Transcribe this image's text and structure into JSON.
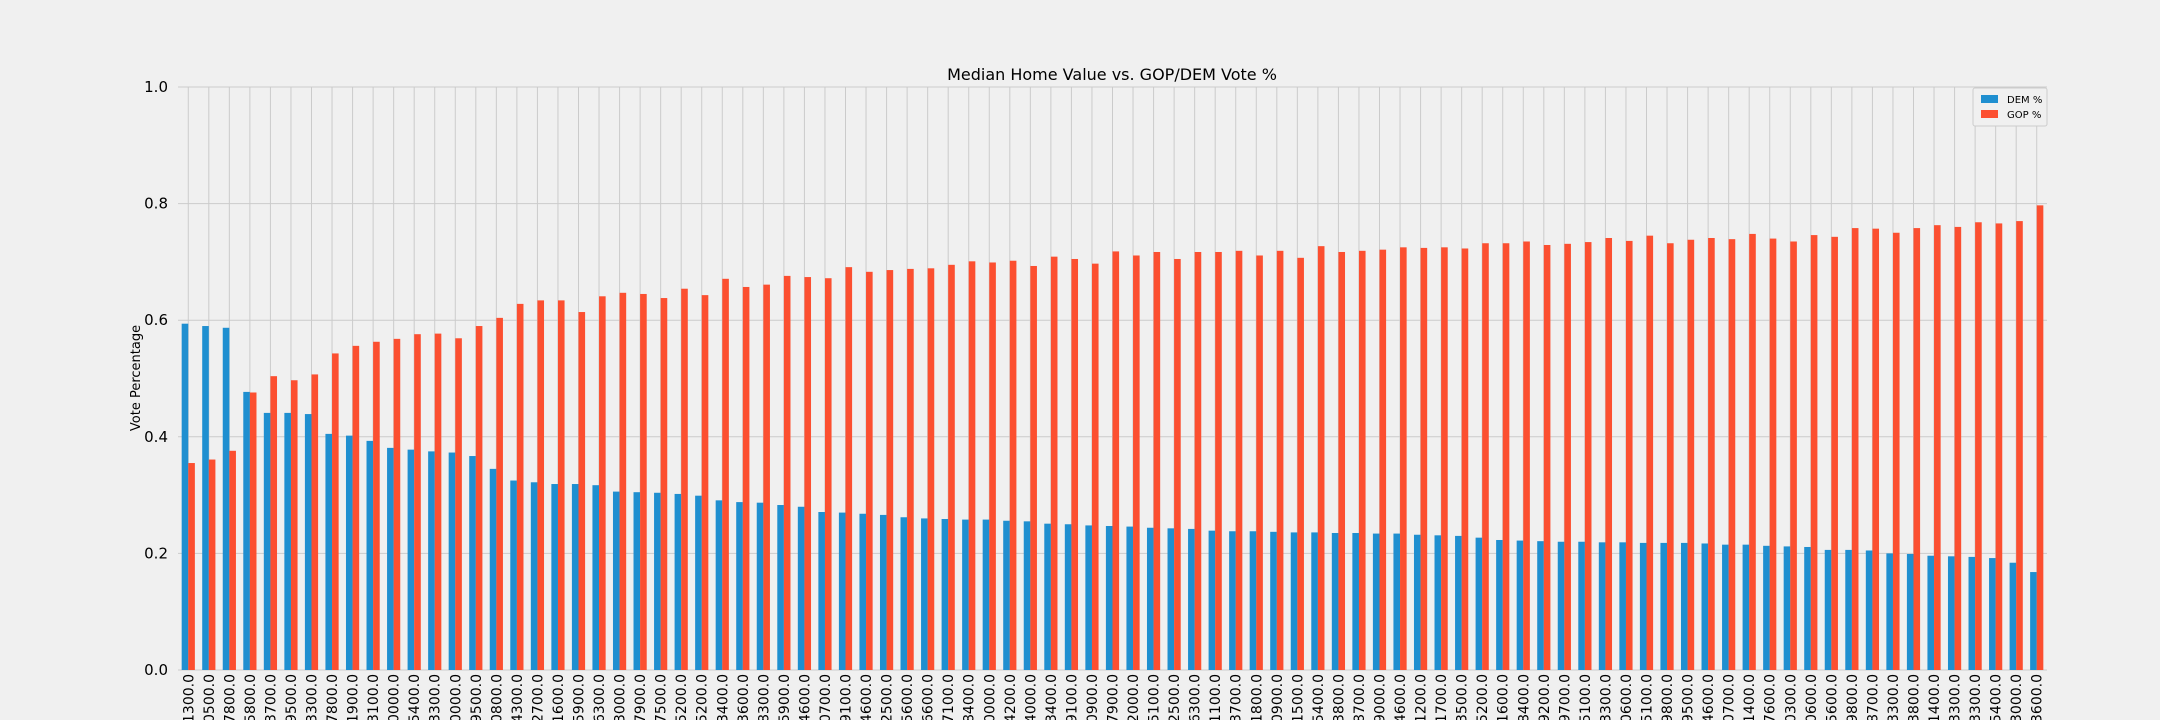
{
  "colors": {
    "dem": "#1f8fd0",
    "gop": "#fc4f30",
    "background": "#f0f0f0",
    "grid": "#cbcbcb"
  },
  "chart_data": {
    "type": "bar",
    "title": "Median Home Value vs. GOP/DEM Vote %",
    "xlabel": "",
    "ylabel": "Vote Percentage",
    "ylim": [
      0,
      1.0
    ],
    "yticks": [
      "0.0",
      "0.2",
      "0.4",
      "0.6",
      "0.8",
      "1.0"
    ],
    "grid": true,
    "legend_position": "top-right",
    "categories": [
      "1300.0",
      "0500.0",
      "7800.0",
      "5800.0",
      "3700.0",
      "9500.0",
      "3300.0",
      "7800.0",
      "1900.0",
      "3100.0",
      "0000.0",
      "5400.0",
      "3300.0",
      "0000.0",
      "9500.0",
      "0800.0",
      "4300.0",
      "2700.0",
      "1600.0",
      "5900.0",
      "6300.0",
      "3000.0",
      "7900.0",
      "7500.0",
      "5200.0",
      "5200.0",
      "3400.0",
      "3600.0",
      "8300.0",
      "5900.0",
      "4600.0",
      "0700.0",
      "9100.0",
      "4600.0",
      "2500.0",
      "5600.0",
      "6600.0",
      "7100.0",
      "8400.0",
      "0000.0",
      "4200.0",
      "4000.0",
      "3400.0",
      "9100.0",
      "0900.0",
      "7900.0",
      "2000.0",
      "5100.0",
      "2500.0",
      "6300.0",
      "1100.0",
      "3700.0",
      "1800.0",
      "0900.0",
      "1500.0",
      "5400.0",
      "3800.0",
      "8700.0",
      "9000.0",
      "4600.0",
      "1200.0",
      "1700.0",
      "3500.0",
      "5200.0",
      "1600.0",
      "8400.0",
      "9200.0",
      "9700.0",
      "5100.0",
      "3300.0",
      "0600.0",
      "5100.0",
      "9800.0",
      "9500.0",
      "4600.0",
      "0700.0",
      "1400.0",
      "7600.0",
      "0300.0",
      "0600.0",
      "5600.0",
      "9800.0",
      "8700.0",
      "3300.0",
      "3800.0",
      "1400.0",
      "3300.0",
      "3300.0",
      "5400.0",
      "3000.0",
      "3600.0"
    ],
    "series": [
      {
        "name": "DEM %",
        "values": [
          0.594,
          0.59,
          0.587,
          0.477,
          0.441,
          0.441,
          0.439,
          0.405,
          0.402,
          0.393,
          0.381,
          0.378,
          0.375,
          0.373,
          0.367,
          0.345,
          0.325,
          0.322,
          0.319,
          0.319,
          0.317,
          0.306,
          0.305,
          0.304,
          0.302,
          0.299,
          0.291,
          0.288,
          0.287,
          0.283,
          0.28,
          0.271,
          0.27,
          0.268,
          0.266,
          0.262,
          0.26,
          0.259,
          0.258,
          0.258,
          0.256,
          0.255,
          0.251,
          0.25,
          0.248,
          0.247,
          0.246,
          0.244,
          0.243,
          0.242,
          0.239,
          0.238,
          0.238,
          0.237,
          0.236,
          0.236,
          0.235,
          0.235,
          0.234,
          0.234,
          0.232,
          0.231,
          0.23,
          0.227,
          0.223,
          0.222,
          0.221,
          0.22,
          0.22,
          0.219,
          0.219,
          0.218,
          0.218,
          0.218,
          0.217,
          0.215,
          0.215,
          0.213,
          0.212,
          0.211,
          0.206,
          0.206,
          0.205,
          0.2,
          0.199,
          0.196,
          0.195,
          0.194,
          0.192,
          0.184,
          0.168
        ]
      },
      {
        "name": "GOP %",
        "values": [
          0.355,
          0.361,
          0.376,
          0.476,
          0.504,
          0.497,
          0.507,
          0.543,
          0.556,
          0.563,
          0.568,
          0.576,
          0.577,
          0.569,
          0.59,
          0.604,
          0.628,
          0.634,
          0.634,
          0.614,
          0.641,
          0.647,
          0.645,
          0.638,
          0.654,
          0.643,
          0.671,
          0.657,
          0.661,
          0.676,
          0.674,
          0.672,
          0.691,
          0.683,
          0.686,
          0.688,
          0.689,
          0.695,
          0.701,
          0.699,
          0.702,
          0.693,
          0.709,
          0.705,
          0.697,
          0.718,
          0.711,
          0.717,
          0.705,
          0.717,
          0.717,
          0.719,
          0.711,
          0.719,
          0.707,
          0.727,
          0.717,
          0.719,
          0.721,
          0.725,
          0.724,
          0.725,
          0.723,
          0.732,
          0.732,
          0.735,
          0.729,
          0.731,
          0.734,
          0.741,
          0.736,
          0.745,
          0.732,
          0.738,
          0.741,
          0.739,
          0.748,
          0.74,
          0.735,
          0.746,
          0.743,
          0.758,
          0.757,
          0.75,
          0.758,
          0.763,
          0.76,
          0.768,
          0.766,
          0.77,
          0.797
        ]
      }
    ]
  }
}
